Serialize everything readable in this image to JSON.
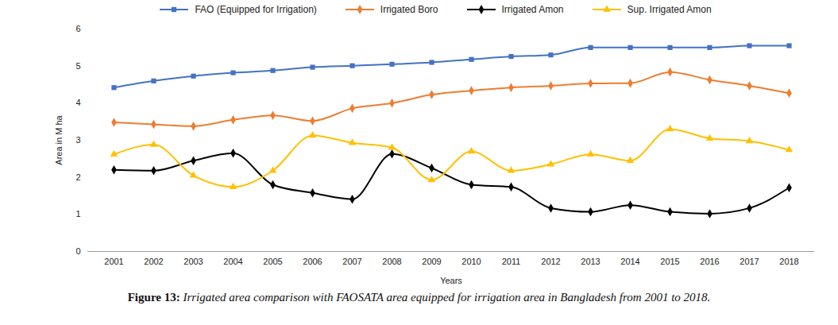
{
  "chart_data": {
    "type": "line",
    "caption": "Figure 13: Irrigated area comparison with FAOSATA area equipped for irrigation area in Bangladesh from 2001 to 2018.",
    "x_label": "Years",
    "y_label": "Area in M ha",
    "categories": [
      "2001",
      "2002",
      "2003",
      "2004",
      "2005",
      "2006",
      "2007",
      "2008",
      "2009",
      "2010",
      "2011",
      "2012",
      "2013",
      "2014",
      "2015",
      "2016",
      "2017",
      "2018"
    ],
    "series": [
      {
        "name": "FAO (Equipped for Irrigation)",
        "color": "#4472c4",
        "marker": "square",
        "values": [
          4.42,
          4.6,
          4.73,
          4.82,
          4.88,
          4.97,
          5.01,
          5.05,
          5.1,
          5.18,
          5.26,
          5.3,
          5.5,
          5.5,
          5.5,
          5.5,
          5.55,
          5.55
        ]
      },
      {
        "name": "Irrigated Boro",
        "color": "#ed7d31",
        "marker": "diamond",
        "values": [
          3.48,
          3.43,
          3.38,
          3.55,
          3.67,
          3.52,
          3.86,
          4.0,
          4.23,
          4.34,
          4.42,
          4.47,
          4.53,
          4.54,
          4.84,
          4.63,
          4.47,
          4.27
        ]
      },
      {
        "name": "Irrigated Amon",
        "color": "#000000",
        "marker": "diamond",
        "values": [
          2.2,
          2.18,
          2.45,
          2.65,
          1.8,
          1.58,
          1.41,
          2.63,
          2.25,
          1.8,
          1.74,
          1.17,
          1.07,
          1.25,
          1.07,
          1.02,
          1.17,
          1.72
        ]
      },
      {
        "name": "Sup. Irrigated Amon",
        "color": "#ffc000",
        "marker": "triangle",
        "values": [
          2.62,
          2.88,
          2.05,
          1.74,
          2.18,
          3.13,
          2.93,
          2.8,
          1.93,
          2.7,
          2.18,
          2.35,
          2.62,
          2.45,
          3.3,
          3.05,
          2.98,
          2.74
        ]
      }
    ],
    "ylim": [
      0,
      6
    ],
    "yticks": [
      0,
      1,
      2,
      3,
      4,
      5,
      6
    ],
    "grid": false,
    "legend": "top"
  }
}
